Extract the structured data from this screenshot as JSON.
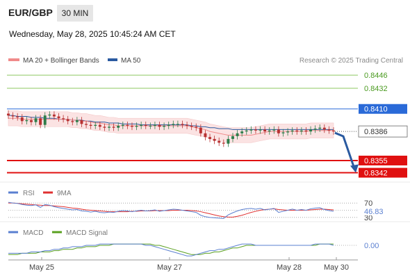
{
  "header": {
    "pair": "EUR/GBP",
    "timeframe": "30 MIN",
    "datetime": "Wednesday, May 28, 2025 10:45:24 AM CET"
  },
  "legend": {
    "ma20_label": "MA 20 + Bollinger Bands",
    "ma50_label": "MA 50",
    "ma20_color": "#f08a8a",
    "ma50_color": "#2a5aa0",
    "research": "Research © 2025 Trading Central"
  },
  "rsi_legend": {
    "rsi_label": "RSI",
    "ma_label": "9MA",
    "rsi_color": "#5a7fd0",
    "ma_color": "#e03030"
  },
  "macd_legend": {
    "macd_label": "MACD",
    "signal_label": "MACD Signal",
    "macd_color": "#5a7fd0",
    "signal_color": "#5aa020"
  },
  "chart_data": {
    "type": "line",
    "description_series": "EUR/GBP 30-minute candles with technical levels",
    "ylim": [
      0.8335,
      0.8452
    ],
    "x_ticks": [
      "May 25",
      "May 27",
      "May 28",
      "May 30"
    ],
    "price_levels": [
      {
        "value": 0.8446,
        "label": "0.8446",
        "kind": "resistance-2",
        "color": "#8cc860"
      },
      {
        "value": 0.8432,
        "label": "0.8432",
        "kind": "resistance-1",
        "color": "#8cc860"
      },
      {
        "value": 0.841,
        "label": "0.8410",
        "kind": "pivot",
        "color": "#2a6ad8"
      },
      {
        "value": 0.8355,
        "label": "0.8355",
        "kind": "support-1",
        "color": "#e01010"
      },
      {
        "value": 0.8342,
        "label": "0.8342",
        "kind": "support-2",
        "color": "#e01010"
      }
    ],
    "current_price": {
      "value": 0.8386,
      "label": "0.8386"
    },
    "forecast_arrow": {
      "from": 0.8386,
      "to": 0.8342,
      "color": "#2a5aa0"
    },
    "series": [
      {
        "name": "Price",
        "values": [
          0.8403,
          0.8402,
          0.8401,
          0.8397,
          0.8398,
          0.8396,
          0.84,
          0.8393,
          0.8403,
          0.8404,
          0.8402,
          0.84,
          0.8399,
          0.8397,
          0.8396,
          0.8398,
          0.8394,
          0.8393,
          0.8392,
          0.8393,
          0.8391,
          0.839,
          0.8391,
          0.839,
          0.8392,
          0.8393,
          0.8392,
          0.8391,
          0.8392,
          0.8393,
          0.8392,
          0.8392,
          0.8393,
          0.8391,
          0.8392,
          0.8393,
          0.8394,
          0.8394,
          0.8393,
          0.8392,
          0.8391,
          0.839,
          0.8384,
          0.838,
          0.8378,
          0.8376,
          0.8374,
          0.8373,
          0.8378,
          0.8381,
          0.8384,
          0.8386,
          0.8387,
          0.8388,
          0.8387,
          0.8388,
          0.8386,
          0.8387,
          0.8388,
          0.8384,
          0.8385,
          0.8386,
          0.8387,
          0.8386,
          0.8387,
          0.8386,
          0.8388,
          0.8389,
          0.839,
          0.8388,
          0.8387,
          0.8386
        ]
      },
      {
        "name": "MA 20",
        "values": [
          0.84,
          0.84,
          0.84,
          0.8399,
          0.8399,
          0.8399,
          0.8399,
          0.8399,
          0.8399,
          0.8399,
          0.8399,
          0.8399,
          0.8399,
          0.8399,
          0.8398,
          0.8398,
          0.8397,
          0.8397,
          0.8396,
          0.8395,
          0.8395,
          0.8394,
          0.8393,
          0.8393,
          0.8392,
          0.8392,
          0.8392,
          0.8392,
          0.8392,
          0.8392,
          0.8392,
          0.8392,
          0.8392,
          0.8392,
          0.8392,
          0.8392,
          0.8392,
          0.8392,
          0.8392,
          0.8392,
          0.8391,
          0.839,
          0.8389,
          0.8388,
          0.8386,
          0.8385,
          0.8384,
          0.8383,
          0.8382,
          0.8382,
          0.8382,
          0.8382,
          0.8382,
          0.8382,
          0.8383,
          0.8384,
          0.8385,
          0.8386,
          0.8386,
          0.8386,
          0.8386,
          0.8386,
          0.8386,
          0.8386,
          0.8386,
          0.8386,
          0.8387,
          0.8387,
          0.8387,
          0.8387,
          0.8387,
          0.8387
        ]
      },
      {
        "name": "MA 50",
        "values": [
          0.8403,
          0.8403,
          0.8402,
          0.8402,
          0.8402,
          0.8401,
          0.8401,
          0.8401,
          0.84,
          0.84,
          0.84,
          0.8399,
          0.8399,
          0.8399,
          0.8398,
          0.8398,
          0.8398,
          0.8397,
          0.8397,
          0.8396,
          0.8396,
          0.8396,
          0.8395,
          0.8395,
          0.8395,
          0.8394,
          0.8394,
          0.8394,
          0.8394,
          0.8393,
          0.8393,
          0.8393,
          0.8393,
          0.8393,
          0.8393,
          0.8393,
          0.8393,
          0.8393,
          0.8393,
          0.8393,
          0.8392,
          0.8392,
          0.8391,
          0.8391,
          0.839,
          0.839,
          0.8389,
          0.8389,
          0.8389,
          0.8388,
          0.8388,
          0.8388,
          0.8388,
          0.8388,
          0.8388,
          0.8388,
          0.8388,
          0.8388,
          0.8388,
          0.8388,
          0.8388,
          0.8388,
          0.8388,
          0.8388,
          0.8388,
          0.8388,
          0.8388,
          0.8388,
          0.8388,
          0.8388,
          0.8388,
          0.8388
        ]
      }
    ],
    "bollinger_width": 0.0008,
    "rsi": {
      "levels": [
        70,
        50,
        30
      ],
      "labels": [
        "70",
        "50",
        "30"
      ],
      "current": "46.83",
      "ylim": [
        20,
        80
      ],
      "rsi_values": [
        72,
        70,
        69,
        66,
        64,
        63,
        65,
        58,
        66,
        64,
        60,
        57,
        55,
        53,
        51,
        52,
        48,
        47,
        45,
        47,
        44,
        43,
        45,
        44,
        47,
        49,
        48,
        46,
        48,
        50,
        48,
        49,
        51,
        47,
        49,
        51,
        53,
        52,
        50,
        48,
        46,
        44,
        36,
        32,
        30,
        29,
        28,
        27,
        37,
        43,
        48,
        52,
        54,
        55,
        53,
        55,
        51,
        53,
        55,
        44,
        47,
        50,
        53,
        50,
        52,
        50,
        54,
        56,
        57,
        52,
        49,
        47
      ],
      "ma_values": [
        70,
        70,
        69,
        68,
        67,
        66,
        65,
        64,
        63,
        63,
        62,
        61,
        60,
        58,
        56,
        55,
        53,
        51,
        50,
        49,
        48,
        47,
        46,
        46,
        46,
        46,
        46,
        47,
        47,
        48,
        48,
        48,
        49,
        49,
        49,
        49,
        50,
        50,
        50,
        50,
        49,
        48,
        46,
        43,
        40,
        37,
        34,
        32,
        31,
        31,
        33,
        36,
        40,
        44,
        47,
        50,
        52,
        53,
        54,
        52,
        51,
        50,
        50,
        50,
        50,
        50,
        51,
        52,
        53,
        53,
        52,
        51
      ]
    },
    "macd": {
      "zero_label": "0.00",
      "ylim": [
        -0.001,
        0.001
      ],
      "macd_values": [
        -0.0006,
        -0.0006,
        -0.0006,
        -0.0006,
        -0.0006,
        -0.0005,
        -0.0005,
        -0.0005,
        -0.0004,
        -0.0004,
        -0.0003,
        -0.0003,
        -0.0002,
        -0.0002,
        -0.0001,
        -0.0001,
        -0.0001,
        0.0,
        0.0,
        0.0,
        0.0001,
        0.0001,
        0.0001,
        0.0001,
        0.0001,
        0.0001,
        0.0001,
        0.0001,
        0.0001,
        0.0001,
        0.0,
        0.0,
        -0.0001,
        -0.0002,
        -0.0003,
        -0.0004,
        -0.0005,
        -0.0006,
        -0.0007,
        -0.0008,
        -0.0008,
        -0.0007,
        -0.0006,
        -0.0005,
        -0.0004,
        -0.0004,
        -0.0003,
        -0.0003,
        -0.0002,
        -0.0001,
        0.0,
        0.0001,
        0.0001,
        0.0001,
        0.0,
        0.0,
        0.0,
        0.0,
        0.0,
        0.0,
        0.0,
        0.0,
        0.0,
        0.0,
        0.0,
        0.0,
        0.0,
        0.0001,
        0.0001,
        0.0001,
        0.0001,
        0.0
      ],
      "signal_values": [
        -0.0007,
        -0.0007,
        -0.0007,
        -0.0006,
        -0.0006,
        -0.0006,
        -0.0006,
        -0.0005,
        -0.0005,
        -0.0005,
        -0.0004,
        -0.0004,
        -0.0003,
        -0.0003,
        -0.0003,
        -0.0002,
        -0.0002,
        -0.0001,
        -0.0001,
        -0.0001,
        0.0,
        0.0,
        0.0,
        0.0001,
        0.0001,
        0.0001,
        0.0001,
        0.0001,
        0.0001,
        0.0001,
        0.0001,
        0.0001,
        0.0,
        0.0,
        -0.0001,
        -0.0002,
        -0.0003,
        -0.0004,
        -0.0005,
        -0.0006,
        -0.0007,
        -0.0007,
        -0.0007,
        -0.0006,
        -0.0006,
        -0.0005,
        -0.0005,
        -0.0004,
        -0.0003,
        -0.0002,
        -0.0002,
        -0.0001,
        0.0,
        0.0,
        0.0,
        0.0,
        0.0,
        0.0,
        0.0,
        0.0,
        0.0,
        0.0,
        0.0,
        0.0,
        0.0,
        0.0,
        0.0,
        0.0,
        0.0001,
        0.0001,
        0.0001,
        0.0001
      ]
    }
  }
}
